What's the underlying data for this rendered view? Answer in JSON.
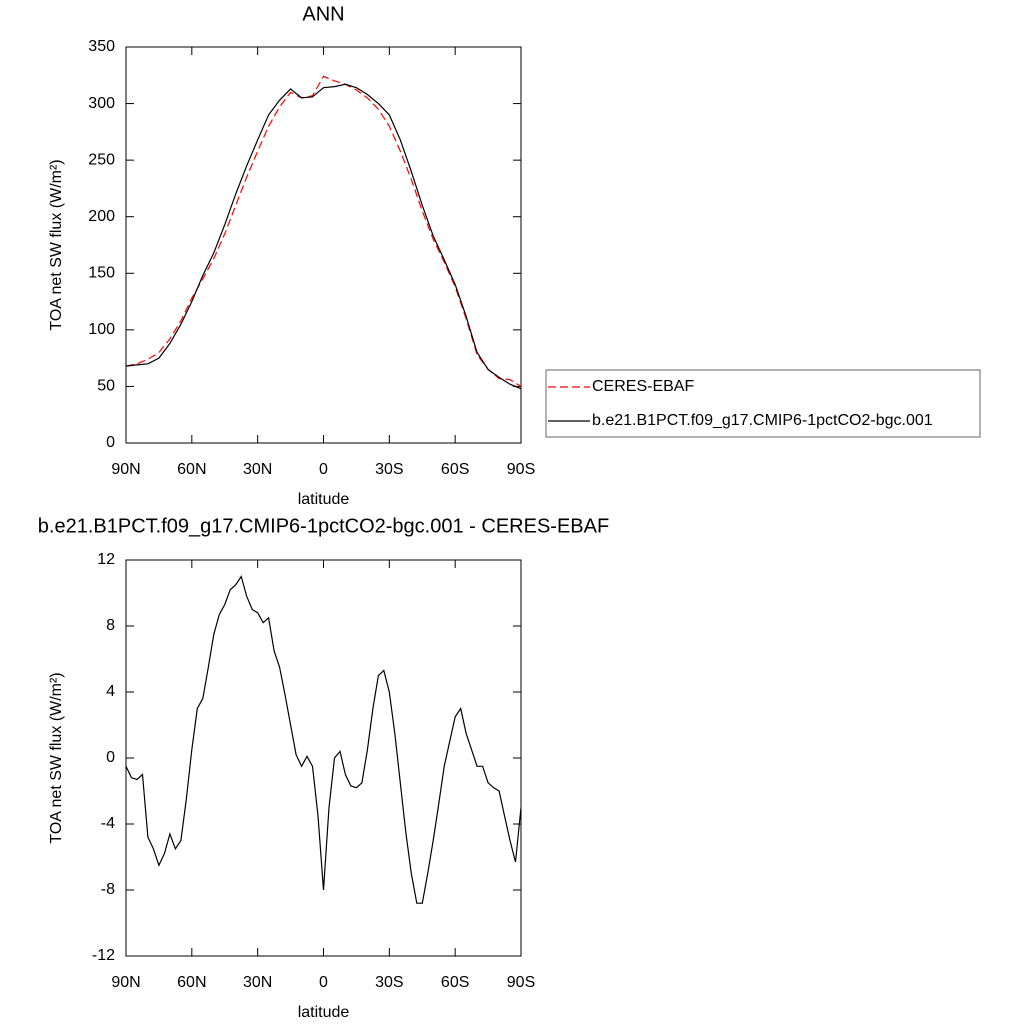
{
  "chart_data": [
    {
      "type": "line",
      "title": "ANN",
      "x_label": "latitude",
      "y_label": "TOA net SW flux (W/m²)",
      "x": [
        90,
        85,
        80,
        75,
        70,
        65,
        60,
        55,
        50,
        45,
        40,
        35,
        30,
        25,
        20,
        15,
        10,
        5,
        0,
        -5,
        -10,
        -15,
        -20,
        -25,
        -30,
        -35,
        -40,
        -45,
        -50,
        -55,
        -60,
        -65,
        -70,
        -75,
        -80,
        -85,
        -90
      ],
      "series": [
        {
          "name": "CERES-EBAF",
          "color": "#ff0000",
          "dashed": true,
          "values": [
            68,
            70,
            74,
            80,
            92,
            108,
            128,
            145,
            163,
            185,
            210,
            235,
            258,
            280,
            297,
            310,
            305,
            307,
            324,
            320,
            317,
            312,
            305,
            295,
            280,
            258,
            233,
            205,
            180,
            160,
            138,
            110,
            78,
            65,
            57,
            56,
            50
          ]
        },
        {
          "name": "b.e21.B1PCT.f09_g17.CMIP6-1pctCO2-bgc.001",
          "color": "#000000",
          "dashed": false,
          "values": [
            68,
            69,
            70,
            75,
            88,
            105,
            125,
            148,
            168,
            193,
            220,
            245,
            268,
            290,
            303,
            313,
            305,
            306,
            314,
            315,
            317,
            314,
            308,
            300,
            290,
            268,
            240,
            210,
            183,
            162,
            140,
            112,
            80,
            65,
            58,
            52,
            48
          ]
        }
      ],
      "xlim": [
        90,
        -90
      ],
      "xticks": [
        {
          "value": 90,
          "label": "90N"
        },
        {
          "value": 60,
          "label": "60N"
        },
        {
          "value": 30,
          "label": "30N"
        },
        0,
        {
          "value": -30,
          "label": "30S"
        },
        {
          "value": -60,
          "label": "60S"
        },
        {
          "value": -90,
          "label": "90S"
        }
      ],
      "ylim": [
        0,
        350
      ],
      "yticks": [
        0,
        50,
        100,
        150,
        200,
        250,
        300,
        350
      ]
    },
    {
      "type": "line",
      "title": "b.e21.B1PCT.f09_g17.CMIP6-1pctCO2-bgc.001 - CERES-EBAF",
      "x_label": "latitude",
      "y_label": "TOA net SW flux (W/m²)",
      "x": [
        90,
        87.5,
        85,
        82.5,
        80,
        77.5,
        75,
        72.5,
        70,
        67.5,
        65,
        62.5,
        60,
        57.5,
        55,
        52.5,
        50,
        47.5,
        45,
        42.5,
        40,
        37.5,
        35,
        32.5,
        30,
        27.5,
        25,
        22.5,
        20,
        17.5,
        15,
        12.5,
        10,
        7.5,
        5,
        2.5,
        0,
        -2.5,
        -5,
        -7.5,
        -10,
        -12.5,
        -15,
        -17.5,
        -20,
        -22.5,
        -25,
        -27.5,
        -30,
        -32.5,
        -35,
        -37.5,
        -40,
        -42.5,
        -45,
        -47.5,
        -50,
        -52.5,
        -55,
        -57.5,
        -60,
        -62.5,
        -65,
        -67.5,
        -70,
        -72.5,
        -75,
        -77.5,
        -80,
        -82.5,
        -85,
        -87.5,
        -90
      ],
      "values": [
        -0.5,
        -1.2,
        -1.3,
        -1.0,
        -4.8,
        -5.5,
        -6.5,
        -5.8,
        -4.6,
        -5.5,
        -5.0,
        -2.5,
        0.5,
        3.0,
        3.6,
        5.5,
        7.5,
        8.7,
        9.3,
        10.2,
        10.5,
        11.0,
        9.8,
        9.0,
        8.8,
        8.2,
        8.5,
        6.5,
        5.5,
        3.8,
        2.0,
        0.2,
        -0.5,
        0.1,
        -0.5,
        -3.5,
        -8.0,
        -3.0,
        0.0,
        0.4,
        -1.0,
        -1.7,
        -1.8,
        -1.5,
        0.5,
        3.0,
        5.0,
        5.3,
        4.0,
        1.5,
        -1.5,
        -4.5,
        -7.0,
        -8.8,
        -8.8,
        -7.0,
        -5.0,
        -2.8,
        -0.5,
        1.0,
        2.5,
        3.0,
        1.5,
        0.5,
        -0.5,
        -0.5,
        -1.5,
        -1.8,
        -2.0,
        -3.5,
        -5.0,
        -6.3,
        -3.0
      ],
      "color": "#000000",
      "xlim": [
        90,
        -90
      ],
      "xticks": [
        {
          "value": 90,
          "label": "90N"
        },
        {
          "value": 60,
          "label": "60N"
        },
        {
          "value": 30,
          "label": "30N"
        },
        0,
        {
          "value": -30,
          "label": "30S"
        },
        {
          "value": -60,
          "label": "60S"
        },
        {
          "value": -90,
          "label": "90S"
        }
      ],
      "ylim": [
        -12,
        12
      ],
      "yticks": [
        -12,
        -8,
        -4,
        0,
        4,
        8,
        12
      ]
    }
  ]
}
